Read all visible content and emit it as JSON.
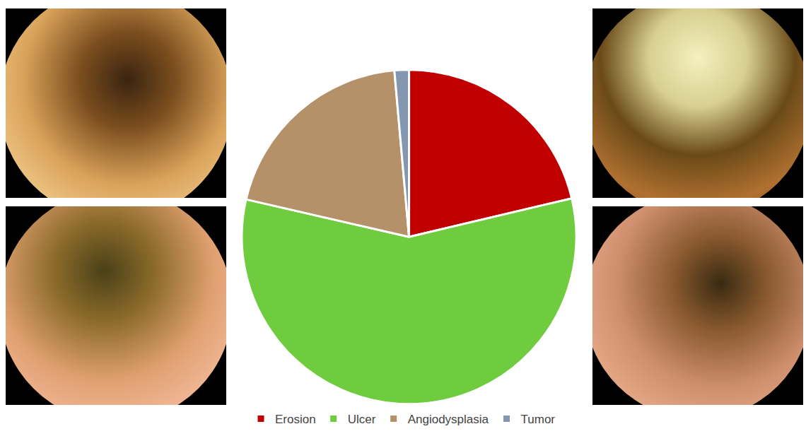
{
  "chart_data": {
    "type": "pie",
    "categories": [
      "Erosion",
      "Ulcer",
      "Angiodysplasia",
      "Tumor"
    ],
    "values": [
      21.3,
      57.3,
      20,
      1.4
    ],
    "colors": [
      "#c00000",
      "#6fcc3f",
      "#b5916a",
      "#8497b0"
    ],
    "legend": "bottom"
  }
}
